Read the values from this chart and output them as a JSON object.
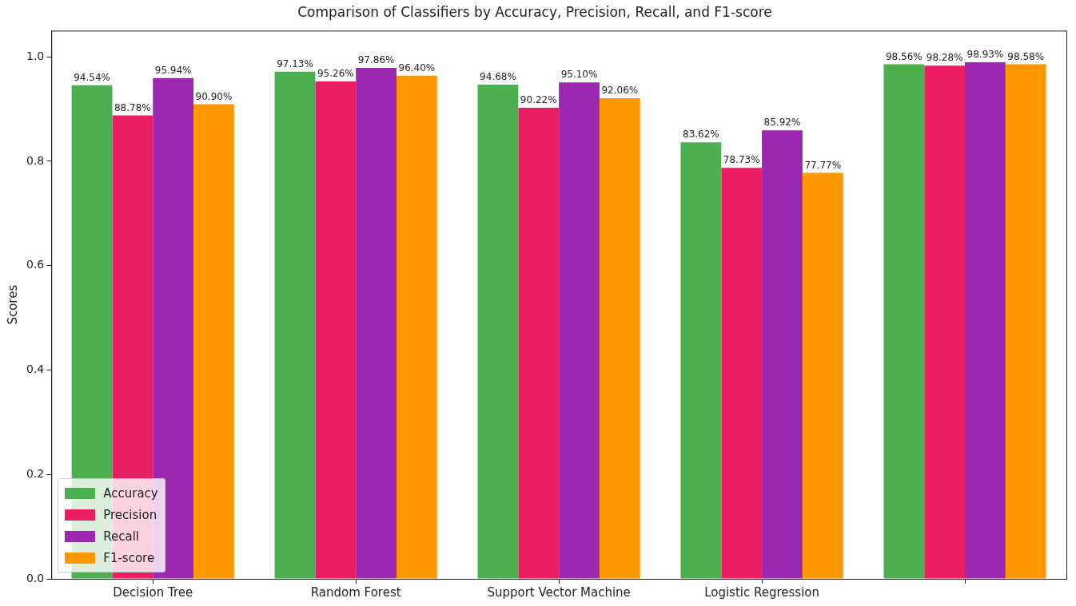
{
  "chart_data": {
    "type": "bar",
    "title": "Comparison of Classifiers by Accuracy, Precision, Recall, and F1-score",
    "ylabel": "Scores",
    "categories": [
      "Decision Tree",
      "Random Forest",
      "Support Vector Machine",
      "Logistic Regression",
      null
    ],
    "series": [
      {
        "name": "Accuracy",
        "color": "#4caf50",
        "values": [
          0.9454,
          0.9713,
          0.9468,
          0.8362,
          0.9856
        ],
        "value_labels": [
          "94.54%",
          "97.13%",
          "94.68%",
          "83.62%",
          "98.56%"
        ]
      },
      {
        "name": "Precision",
        "color": "#e91e63",
        "values": [
          0.8878,
          0.9526,
          0.9022,
          0.7873,
          0.9828
        ],
        "value_labels": [
          "88.78%",
          "95.26%",
          "90.22%",
          "78.73%",
          "98.28%"
        ]
      },
      {
        "name": "Recall",
        "color": "#9c27b0",
        "values": [
          0.9594,
          0.9786,
          0.951,
          0.8592,
          0.9893
        ],
        "value_labels": [
          "95.94%",
          "97.86%",
          "95.10%",
          "85.92%",
          "98.93%"
        ]
      },
      {
        "name": "F1-score",
        "color": "#ff9800",
        "values": [
          0.909,
          0.964,
          0.9206,
          0.7777,
          0.9858
        ],
        "value_labels": [
          "90.90%",
          "96.40%",
          "92.06%",
          "77.77%",
          "98.58%"
        ]
      }
    ],
    "ylim": [
      0,
      1.05
    ],
    "yticks": [
      {
        "value": 0,
        "label": "0.0"
      },
      {
        "value": 0.2,
        "label": "0.2"
      },
      {
        "value": 0.4,
        "label": "0.4"
      },
      {
        "value": 0.6,
        "label": "0.6"
      },
      {
        "value": 0.8,
        "label": "0.8"
      },
      {
        "value": 1,
        "label": "1.0"
      }
    ],
    "grid": false,
    "legend": "bottom left"
  }
}
